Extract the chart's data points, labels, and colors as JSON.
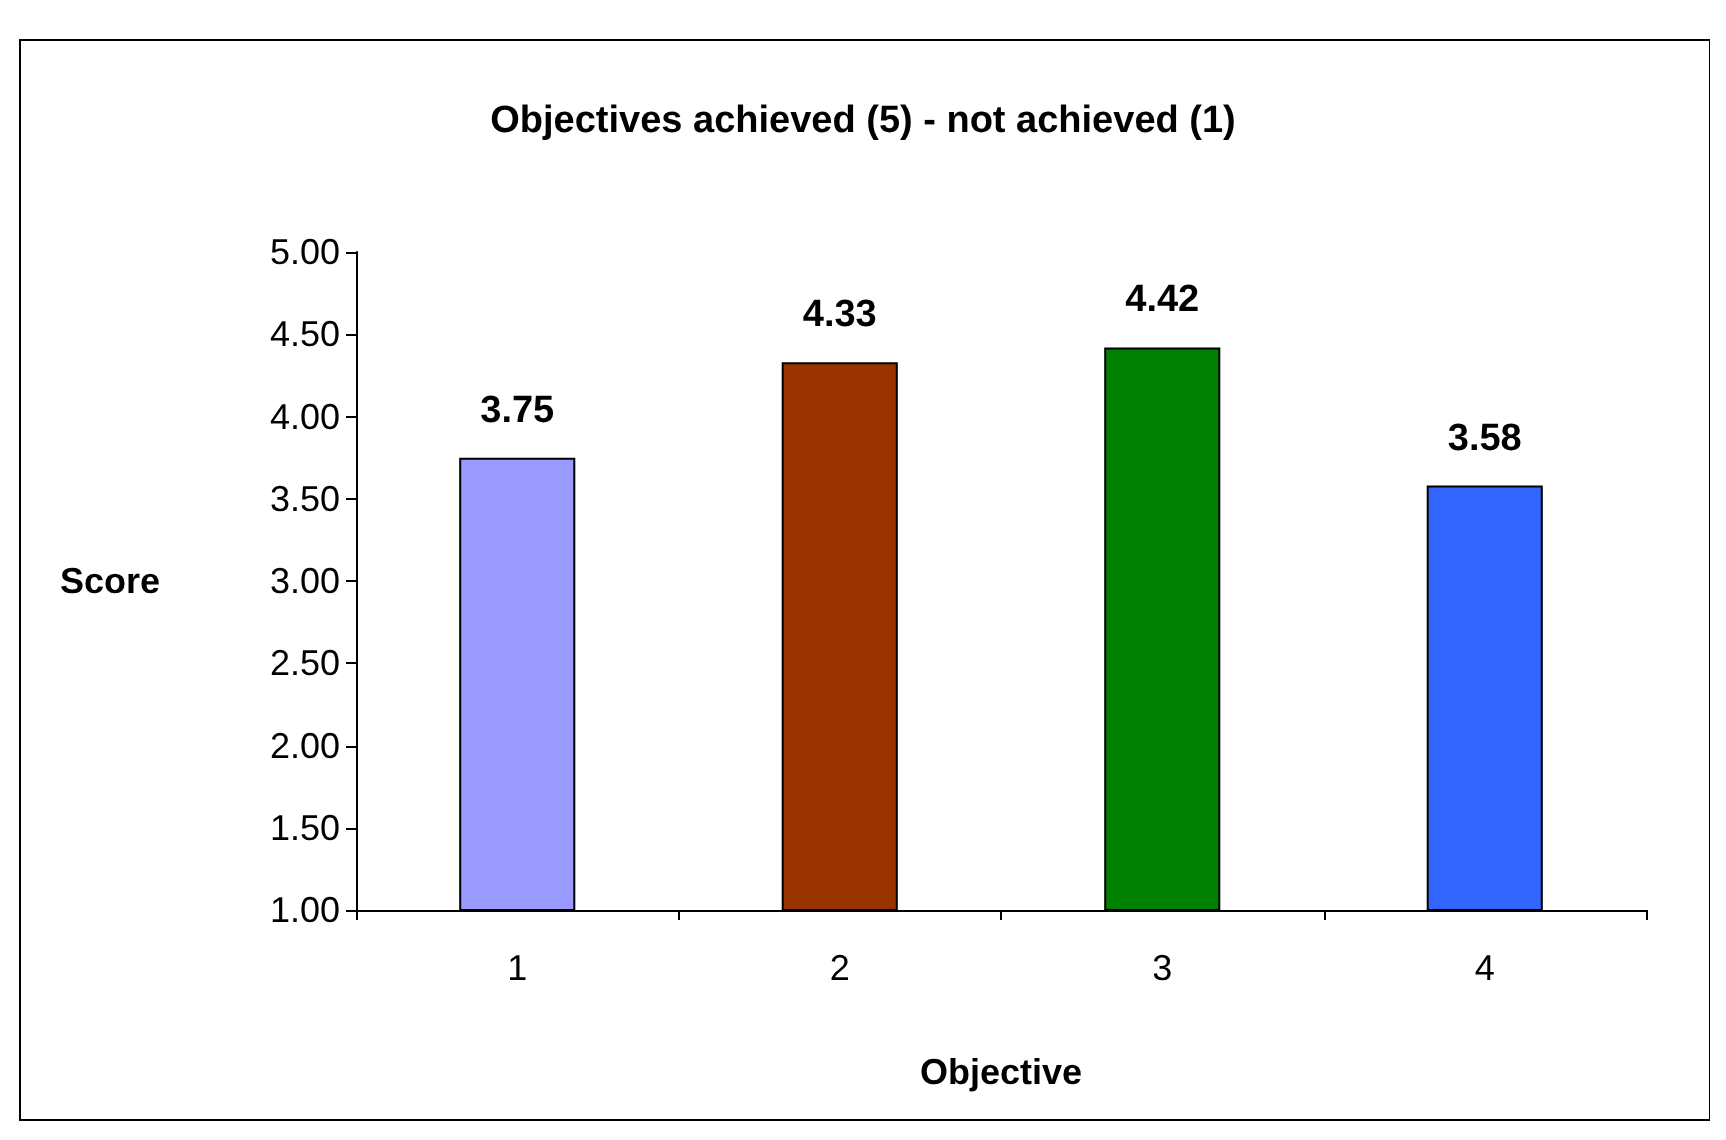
{
  "chart_data": {
    "type": "bar",
    "title": "Objectives achieved (5) - not achieved (1)",
    "xlabel": "Objective",
    "ylabel": "Score",
    "categories": [
      "1",
      "2",
      "3",
      "4"
    ],
    "values": [
      3.75,
      4.33,
      4.42,
      3.58
    ],
    "colors": [
      "#9999ff",
      "#993300",
      "#008000",
      "#3366ff"
    ],
    "ylim": [
      1,
      5
    ],
    "yticks": [
      {
        "value": 1,
        "label": "1.00"
      },
      {
        "value": 1.5,
        "label": "1.50"
      },
      {
        "value": 2,
        "label": "2.00"
      },
      {
        "value": 2.5,
        "label": "2.50"
      },
      {
        "value": 3,
        "label": "3.00"
      },
      {
        "value": 3.5,
        "label": "3.50"
      },
      {
        "value": 4,
        "label": "4.00"
      },
      {
        "value": 4.5,
        "label": "4.50"
      },
      {
        "value": 5,
        "label": "5.00"
      }
    ],
    "data_labels": true,
    "grid": false
  }
}
